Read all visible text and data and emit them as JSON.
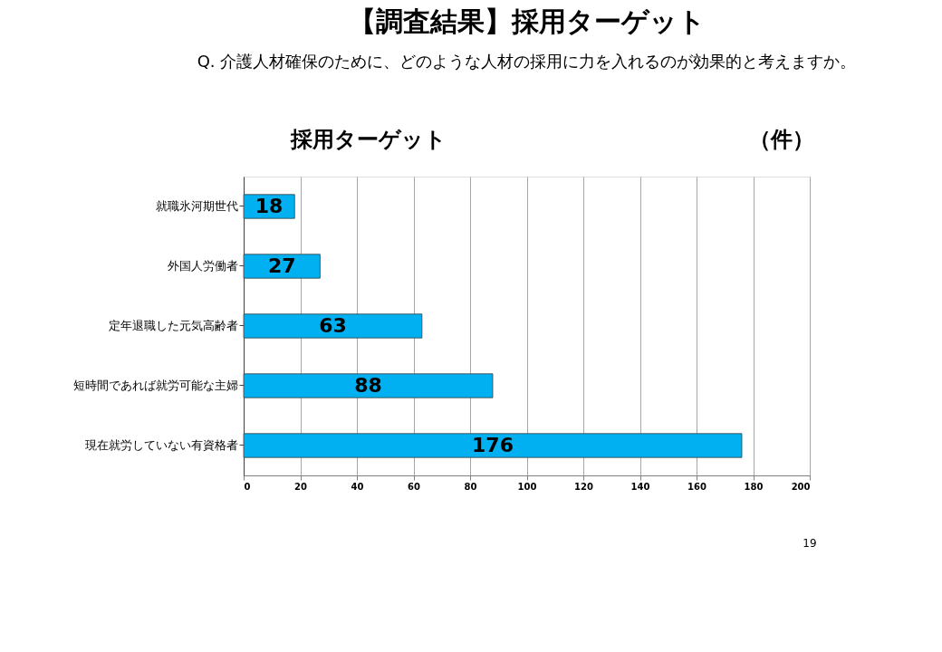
{
  "chart_data": {
    "type": "bar",
    "orientation": "horizontal",
    "title": "【調査結果】採用ターゲット",
    "subtitle": "Q. 介護人材確保のために、どのような人材の採用に力を入れるのが効果的と考えますか。",
    "categories": [
      "就職氷河期世代",
      "外国人労働者",
      "定年退職した元気高齢者",
      "短時間であれば就労可能な主婦",
      "現在就労していない有資格者"
    ],
    "values": [
      18,
      27,
      63,
      88,
      176
    ],
    "color": "#00b0f0",
    "xlim": [
      0,
      200
    ],
    "xticks": [
      0,
      20,
      40,
      60,
      80,
      100,
      120,
      140,
      160,
      180,
      200
    ],
    "grid": "x",
    "data_labels": true,
    "annotations": [
      "採用ターゲット",
      "（件）",
      "19"
    ]
  }
}
